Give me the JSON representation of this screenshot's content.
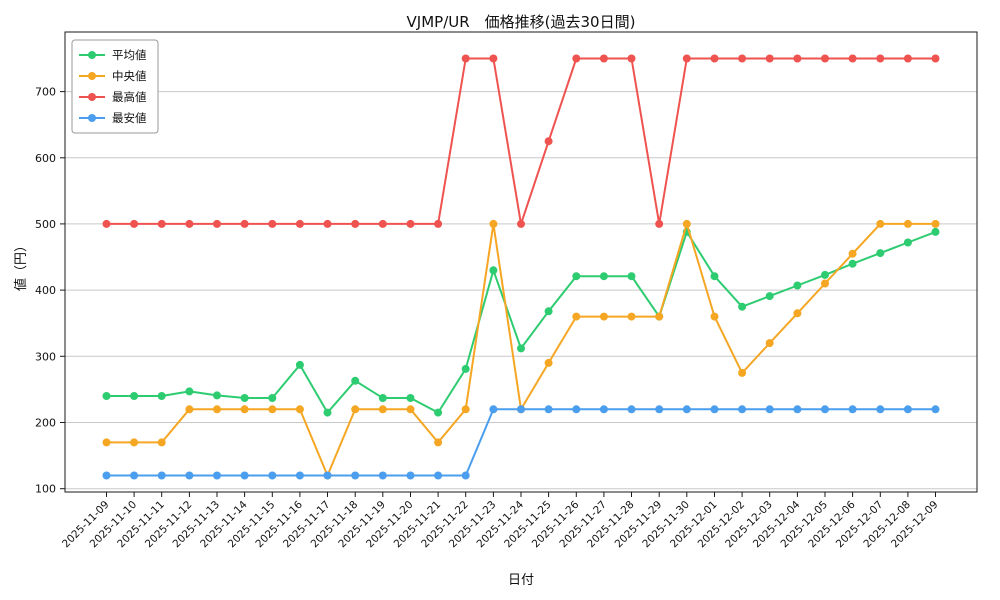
{
  "chart_data": {
    "type": "line",
    "title": "VJMP/UR　価格推移(過去30日間)",
    "xlabel": "日付",
    "ylabel": "値（円）",
    "grid": "horizontal",
    "legend_position": "upper-left",
    "background": "#ffffff",
    "axis_color": "#1a1a1a",
    "grid_color": "#c9c9c9",
    "legend_border_color": "#999999",
    "ylim": [
      95,
      790
    ],
    "yticks": [
      100,
      200,
      300,
      400,
      500,
      600,
      700
    ],
    "categories": [
      "2025-11-09",
      "2025-11-10",
      "2025-11-11",
      "2025-11-12",
      "2025-11-13",
      "2025-11-14",
      "2025-11-15",
      "2025-11-16",
      "2025-11-17",
      "2025-11-18",
      "2025-11-19",
      "2025-11-20",
      "2025-11-21",
      "2025-11-22",
      "2025-11-23",
      "2025-11-24",
      "2025-11-25",
      "2025-11-26",
      "2025-11-27",
      "2025-11-28",
      "2025-11-29",
      "2025-11-30",
      "2025-12-01",
      "2025-12-02",
      "2025-12-03",
      "2025-12-04",
      "2025-12-05",
      "2025-12-06",
      "2025-12-07",
      "2025-12-08",
      "2025-12-09"
    ],
    "series": [
      {
        "id": "average",
        "name": "平均値",
        "color": "#2ecc71",
        "values": [
          240,
          240,
          240,
          247,
          241,
          237,
          237,
          287,
          215,
          263,
          237,
          237,
          215,
          281,
          430,
          312,
          368,
          421,
          421,
          421,
          360,
          488,
          421,
          375,
          391,
          407,
          423,
          440,
          456,
          472,
          488
        ]
      },
      {
        "id": "median",
        "name": "中央値",
        "color": "#f5a623",
        "values": [
          170,
          170,
          170,
          220,
          220,
          220,
          220,
          220,
          120,
          220,
          220,
          220,
          170,
          220,
          500,
          220,
          290,
          360,
          360,
          360,
          360,
          500,
          360,
          275,
          320,
          365,
          410,
          455,
          500,
          500,
          500
        ]
      },
      {
        "id": "highest",
        "name": "最高値",
        "color": "#ef5350",
        "values": [
          500,
          500,
          500,
          500,
          500,
          500,
          500,
          500,
          500,
          500,
          500,
          500,
          500,
          750,
          750,
          500,
          625,
          750,
          750,
          750,
          500,
          750,
          750,
          750,
          750,
          750,
          750,
          750,
          750,
          750,
          750
        ]
      },
      {
        "id": "lowest",
        "name": "最安値",
        "color": "#4a9eed",
        "values": [
          120,
          120,
          120,
          120,
          120,
          120,
          120,
          120,
          120,
          120,
          120,
          120,
          120,
          120,
          220,
          220,
          220,
          220,
          220,
          220,
          220,
          220,
          220,
          220,
          220,
          220,
          220,
          220,
          220,
          220,
          220
        ]
      }
    ]
  }
}
